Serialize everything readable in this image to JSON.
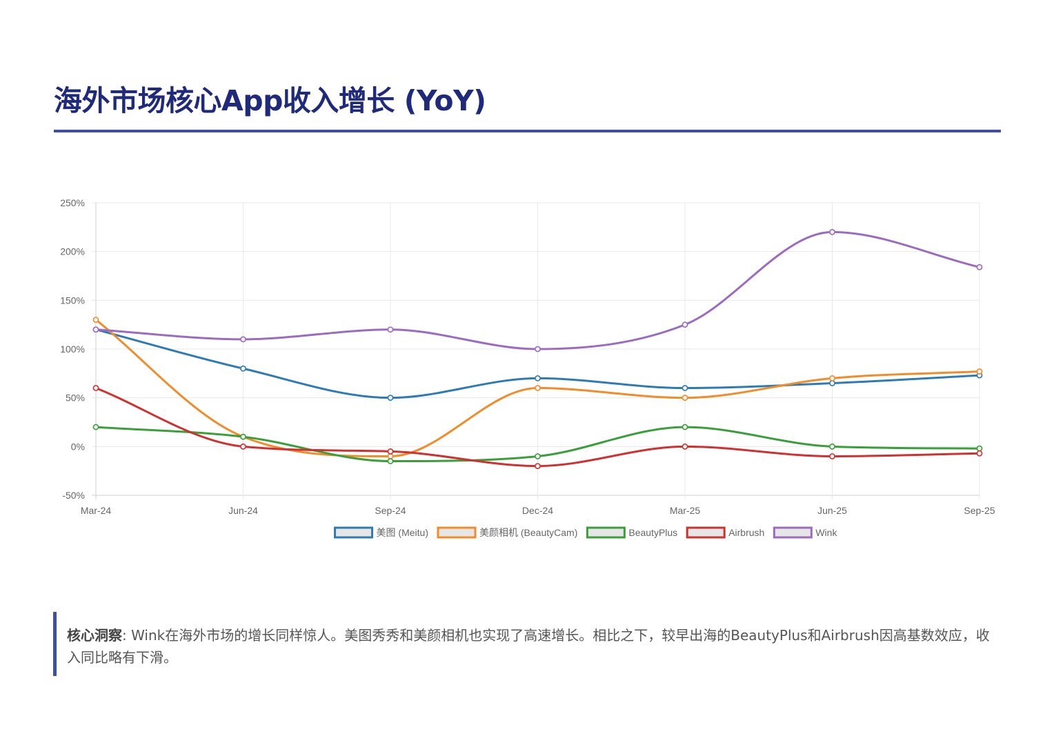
{
  "page": {
    "title": "海外市场核心App收入增长 (YoY)"
  },
  "chart_data": {
    "type": "line",
    "categories": [
      "Mar-24",
      "Jun-24",
      "Sep-24",
      "Dec-24",
      "Mar-25",
      "Jun-25",
      "Sep-25"
    ],
    "y_ticks": [
      250,
      200,
      150,
      100,
      50,
      0,
      -50
    ],
    "y_tick_labels": [
      "250%",
      "200%",
      "150%",
      "100%",
      "50%",
      "0%",
      "-50%"
    ],
    "ylim": [
      -50,
      250
    ],
    "grid": true,
    "legend_position": "bottom",
    "series": [
      {
        "name": "美图 (Meitu)",
        "color": "#2e7bb4",
        "values": [
          120,
          80,
          50,
          70,
          60,
          65,
          73
        ]
      },
      {
        "name": "美颜相机 (BeautyCam)",
        "color": "#f28c28",
        "values": [
          130,
          10,
          -10,
          60,
          50,
          70,
          77
        ]
      },
      {
        "name": "BeautyPlus",
        "color": "#3a9e3a",
        "values": [
          20,
          10,
          -15,
          -10,
          20,
          0,
          -2
        ]
      },
      {
        "name": "Airbrush",
        "color": "#d0302f",
        "values": [
          60,
          0,
          -5,
          -20,
          0,
          -10,
          -7
        ]
      },
      {
        "name": "Wink",
        "color": "#9b6bc0",
        "values": [
          120,
          110,
          120,
          100,
          125,
          220,
          184
        ]
      }
    ]
  },
  "insight": {
    "label": "核心洞察",
    "text": ": Wink在海外市场的增长同样惊人。美图秀秀和美颜相机也实现了高速增长。相比之下，较早出海的BeautyPlus和Airbrush因高基数效应，收入同比略有下滑。"
  }
}
